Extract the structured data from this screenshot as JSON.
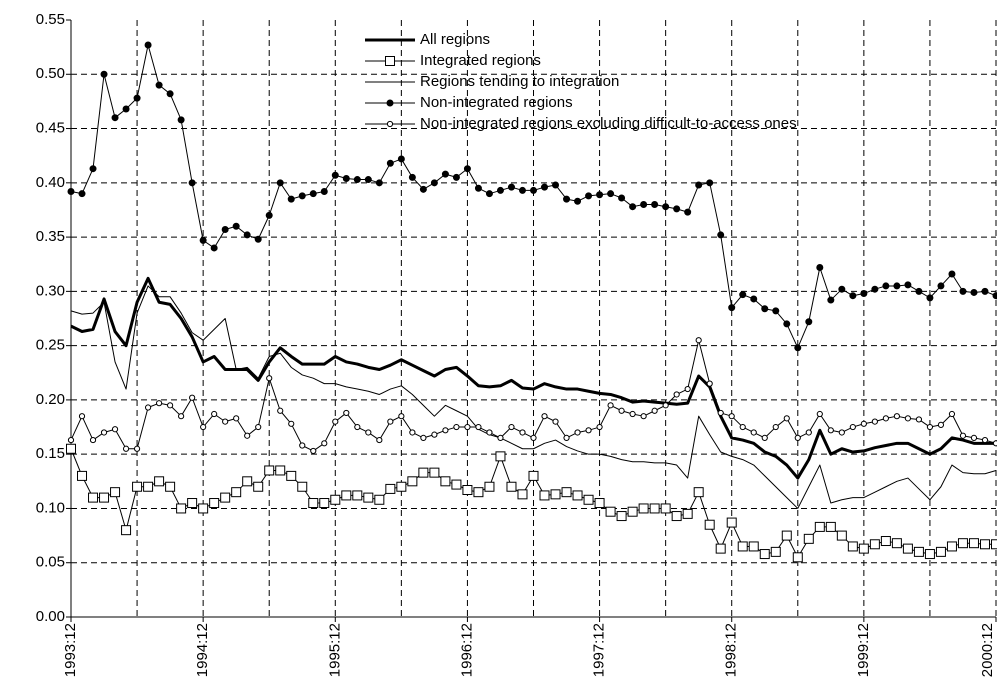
{
  "chart_data": {
    "type": "line",
    "categories": [
      "1993:12",
      null,
      null,
      null,
      null,
      null,
      null,
      null,
      null,
      null,
      null,
      null,
      "1994:12",
      null,
      null,
      null,
      null,
      null,
      null,
      null,
      null,
      null,
      null,
      null,
      "1995:12",
      null,
      null,
      null,
      null,
      null,
      null,
      null,
      null,
      null,
      null,
      null,
      "1996:12",
      null,
      null,
      null,
      null,
      null,
      null,
      null,
      null,
      null,
      null,
      null,
      "1997:12",
      null,
      null,
      null,
      null,
      null,
      null,
      null,
      null,
      null,
      null,
      null,
      "1998:12",
      null,
      null,
      null,
      null,
      null,
      null,
      null,
      null,
      null,
      null,
      null,
      "1999:12",
      null,
      null,
      null,
      null,
      null,
      null,
      null,
      null,
      null,
      null,
      null,
      "2000:12"
    ],
    "ylim": [
      0,
      0.55
    ],
    "yticks": [
      {
        "value": 0,
        "label": "0.00"
      },
      0.05,
      {
        "value": 0.1,
        "label": "0.10"
      },
      0.15,
      {
        "value": 0.2,
        "label": "0.20"
      },
      0.25,
      {
        "value": 0.3,
        "label": "0.30"
      },
      0.35,
      {
        "value": 0.4,
        "label": "0.40"
      },
      0.45,
      {
        "value": 0.5,
        "label": "0.50"
      },
      0.55
    ],
    "grid": true,
    "legend": "top",
    "series": [
      {
        "name": "All regions",
        "color": "#000000",
        "width": 3,
        "marker": "none",
        "values": [
          0.268,
          0.263,
          0.265,
          0.293,
          0.263,
          0.25,
          0.29,
          0.312,
          0.29,
          0.288,
          0.275,
          0.258,
          0.235,
          0.24,
          0.228,
          0.228,
          0.228,
          0.218,
          0.235,
          0.248,
          0.24,
          0.233,
          0.233,
          0.233,
          0.24,
          0.235,
          0.233,
          0.23,
          0.228,
          0.232,
          0.237,
          0.232,
          0.227,
          0.222,
          0.228,
          0.23,
          0.222,
          0.213,
          0.212,
          0.213,
          0.218,
          0.211,
          0.21,
          0.215,
          0.212,
          0.21,
          0.21,
          0.208,
          0.206,
          0.205,
          0.202,
          0.198,
          0.199,
          0.198,
          0.197,
          0.196,
          0.197,
          0.222,
          0.212,
          0.185,
          0.165,
          0.163,
          0.16,
          0.152,
          0.148,
          0.14,
          0.128,
          0.145,
          0.172,
          0.15,
          0.155,
          0.152,
          0.153,
          0.156,
          0.158,
          0.16,
          0.16,
          0.155,
          0.15,
          0.155,
          0.165,
          0.163,
          0.16,
          0.16,
          0.16
        ]
      },
      {
        "name": "Integrated regions",
        "color": "#000000",
        "width": 1,
        "marker": "square",
        "values": [
          0.155,
          0.13,
          0.11,
          0.11,
          0.115,
          0.08,
          0.12,
          0.12,
          0.125,
          0.12,
          0.1,
          0.105,
          0.1,
          0.105,
          0.11,
          0.115,
          0.125,
          0.12,
          0.135,
          0.135,
          0.13,
          0.12,
          0.105,
          0.105,
          0.108,
          0.112,
          0.112,
          0.11,
          0.108,
          0.118,
          0.12,
          0.125,
          0.133,
          0.133,
          0.125,
          0.122,
          0.117,
          0.115,
          0.12,
          0.148,
          0.12,
          0.113,
          0.13,
          0.112,
          0.113,
          0.115,
          0.112,
          0.108,
          0.105,
          0.097,
          0.093,
          0.097,
          0.1,
          0.1,
          0.1,
          0.093,
          0.095,
          0.115,
          0.085,
          0.063,
          0.087,
          0.065,
          0.065,
          0.058,
          0.06,
          0.075,
          0.055,
          0.072,
          0.083,
          0.083,
          0.075,
          0.065,
          0.063,
          0.067,
          0.07,
          0.068,
          0.063,
          0.06,
          0.058,
          0.06,
          0.065,
          0.068,
          0.068,
          0.067,
          0.067
        ]
      },
      {
        "name": "Regions tending to integration",
        "color": "#000000",
        "width": 1,
        "marker": "none",
        "values": [
          0.282,
          0.279,
          0.28,
          0.29,
          0.235,
          0.21,
          0.28,
          0.305,
          0.295,
          0.295,
          0.28,
          0.262,
          0.255,
          0.265,
          0.275,
          0.228,
          0.23,
          0.22,
          0.24,
          0.243,
          0.23,
          0.223,
          0.22,
          0.215,
          0.215,
          0.212,
          0.21,
          0.208,
          0.205,
          0.21,
          0.213,
          0.205,
          0.195,
          0.185,
          0.195,
          0.19,
          0.185,
          0.173,
          0.168,
          0.165,
          0.16,
          0.155,
          0.155,
          0.16,
          0.163,
          0.157,
          0.153,
          0.15,
          0.15,
          0.148,
          0.145,
          0.143,
          0.143,
          0.142,
          0.142,
          0.14,
          0.128,
          0.185,
          0.168,
          0.152,
          0.148,
          0.145,
          0.14,
          0.13,
          0.12,
          0.11,
          0.1,
          0.12,
          0.14,
          0.105,
          0.108,
          0.11,
          0.11,
          0.115,
          0.12,
          0.125,
          0.128,
          0.118,
          0.108,
          0.12,
          0.14,
          0.133,
          0.132,
          0.132,
          0.135
        ]
      },
      {
        "name": "Non-integrated regions",
        "color": "#000000",
        "width": 1,
        "marker": "dot",
        "values": [
          0.392,
          0.39,
          0.413,
          0.5,
          0.46,
          0.468,
          0.478,
          0.527,
          0.49,
          0.482,
          0.458,
          0.4,
          0.347,
          0.34,
          0.357,
          0.36,
          0.352,
          0.348,
          0.37,
          0.4,
          0.385,
          0.388,
          0.39,
          0.392,
          0.407,
          0.404,
          0.403,
          0.403,
          0.4,
          0.418,
          0.422,
          0.405,
          0.394,
          0.4,
          0.408,
          0.405,
          0.413,
          0.395,
          0.39,
          0.393,
          0.396,
          0.393,
          0.393,
          0.396,
          0.398,
          0.385,
          0.383,
          0.388,
          0.389,
          0.39,
          0.386,
          0.378,
          0.38,
          0.38,
          0.378,
          0.376,
          0.373,
          0.398,
          0.4,
          0.352,
          0.285,
          0.297,
          0.293,
          0.284,
          0.282,
          0.27,
          0.248,
          0.272,
          0.322,
          0.292,
          0.302,
          0.296,
          0.298,
          0.302,
          0.305,
          0.305,
          0.306,
          0.3,
          0.294,
          0.305,
          0.316,
          0.3,
          0.299,
          0.3,
          0.296
        ]
      },
      {
        "name": "Non-integrated regions excluding difficult-to-access ones",
        "color": "#000000",
        "width": 1,
        "marker": "circle",
        "values": [
          0.163,
          0.185,
          0.163,
          0.17,
          0.173,
          0.155,
          0.155,
          0.193,
          0.197,
          0.195,
          0.185,
          0.202,
          0.175,
          0.187,
          0.18,
          0.183,
          0.167,
          0.175,
          0.22,
          0.19,
          0.178,
          0.158,
          0.153,
          0.16,
          0.18,
          0.188,
          0.175,
          0.17,
          0.163,
          0.18,
          0.185,
          0.17,
          0.165,
          0.168,
          0.172,
          0.175,
          0.175,
          0.175,
          0.17,
          0.165,
          0.175,
          0.17,
          0.165,
          0.185,
          0.18,
          0.165,
          0.17,
          0.172,
          0.175,
          0.195,
          0.19,
          0.187,
          0.185,
          0.19,
          0.195,
          0.205,
          0.21,
          0.255,
          0.215,
          0.188,
          0.185,
          0.175,
          0.17,
          0.165,
          0.175,
          0.183,
          0.165,
          0.17,
          0.187,
          0.172,
          0.17,
          0.175,
          0.178,
          0.18,
          0.183,
          0.185,
          0.183,
          0.182,
          0.175,
          0.177,
          0.187,
          0.167,
          0.165,
          0.163,
          0.16
        ]
      }
    ]
  }
}
